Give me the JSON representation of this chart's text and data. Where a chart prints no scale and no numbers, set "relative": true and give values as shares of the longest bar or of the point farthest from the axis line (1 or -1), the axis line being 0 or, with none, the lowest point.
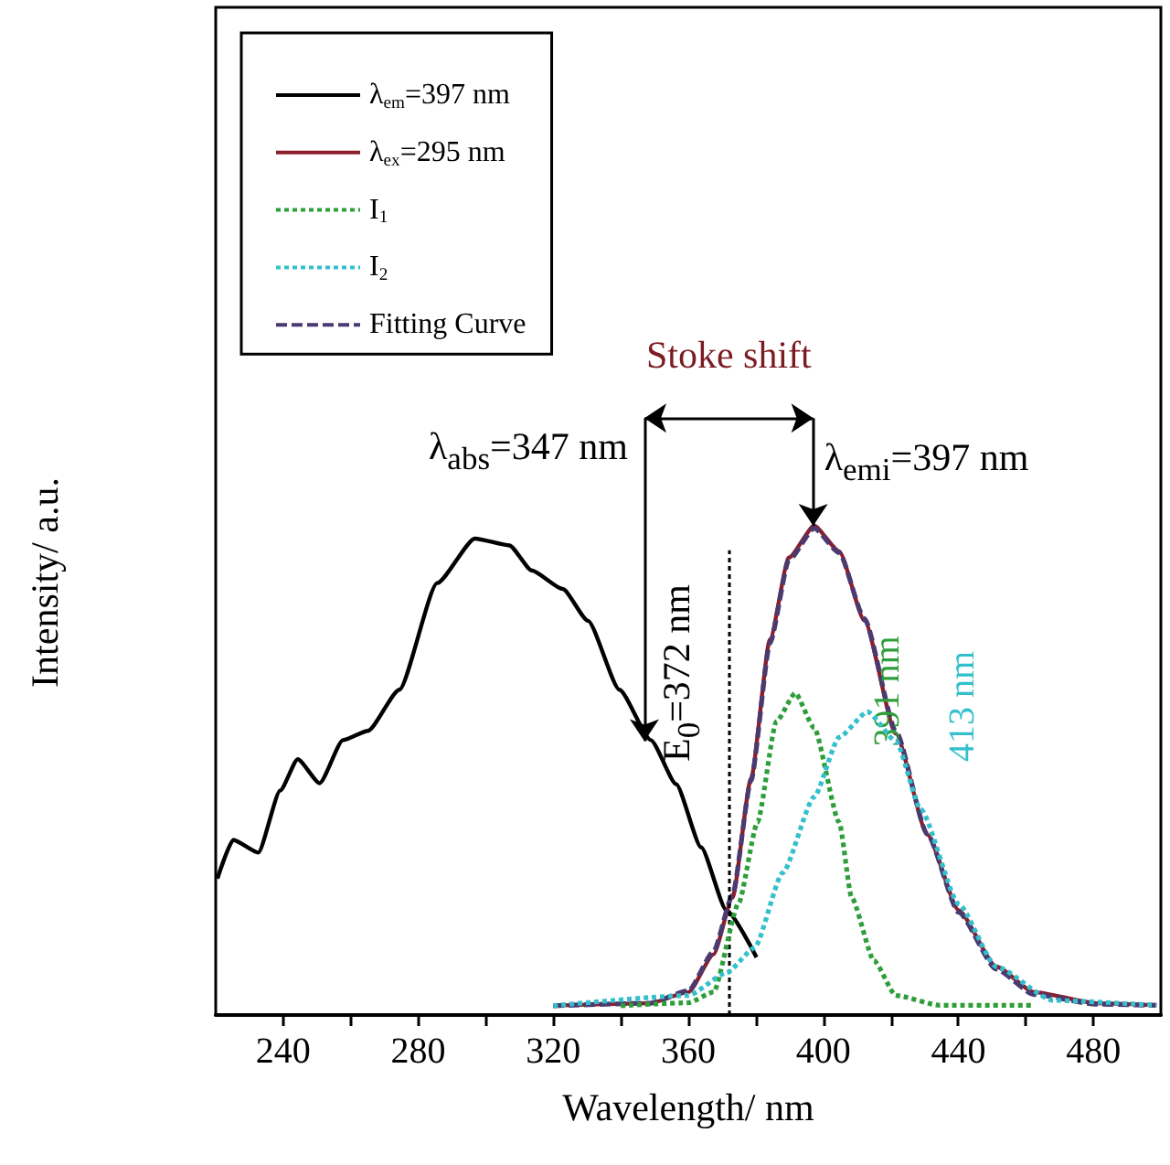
{
  "chart_data": {
    "type": "line",
    "relative": true,
    "xlabel": "Wavelength/ nm",
    "ylabel": "Intensity/ a.u.",
    "xlim": [
      220,
      500
    ],
    "xticks": [
      240,
      {
        "value": 260,
        "label": null
      },
      280,
      {
        "value": 300,
        "label": null
      },
      320,
      {
        "value": 340,
        "label": null
      },
      360,
      {
        "value": 380,
        "label": null
      },
      400,
      {
        "value": 420,
        "label": null
      },
      440,
      {
        "value": 460,
        "label": null
      },
      480
    ],
    "tick_labels": "x",
    "grid": false,
    "legend": "top left",
    "marker": "none",
    "series": [
      {
        "name": "λ$_{em}$=397 nm",
        "color": "#000000",
        "line_style": "solid",
        "x": [
          220.5,
          225.2,
          232.6,
          239.1,
          244.3,
          250.8,
          257.7,
          265.1,
          274.4,
          285.6,
          296.8,
          307,
          313.6,
          322.8,
          330.3,
          339.6,
          348.9,
          356.4,
          363.8,
          371.3,
          380.2
        ],
        "values": [
          0.279,
          0.358,
          0.332,
          0.459,
          0.523,
          0.474,
          0.562,
          0.581,
          0.665,
          0.883,
          0.974,
          0.96,
          0.909,
          0.871,
          0.806,
          0.665,
          0.562,
          0.472,
          0.343,
          0.214,
          0.118
        ]
      },
      {
        "name": "λ$_{ex}$=295 nm",
        "color": "#8b1e2a",
        "line_style": "solid",
        "x": [
          320,
          348.5,
          360.1,
          367.5,
          373.1,
          378.6,
          384.2,
          389.8,
          397.3,
          404.7,
          412.2,
          421.5,
          430.8,
          440.1,
          451.2,
          462.4,
          481,
          498.7
        ],
        "values": [
          0.019,
          0.024,
          0.047,
          0.124,
          0.24,
          0.484,
          0.768,
          0.935,
          1.0,
          0.948,
          0.806,
          0.575,
          0.369,
          0.214,
          0.099,
          0.047,
          0.024,
          0.02
        ]
      },
      {
        "name": "I$_{1}$",
        "color": "#2e9e3a",
        "line_style": "dotted",
        "x": [
          340,
          360,
          367.5,
          374.9,
          380.5,
          386.1,
          391.7,
          397.3,
          404.7,
          408.4,
          415,
          421.5,
          434.4,
          462
        ],
        "values": [
          0.019,
          0.025,
          0.047,
          0.228,
          0.394,
          0.6,
          0.658,
          0.587,
          0.394,
          0.24,
          0.111,
          0.04,
          0.02,
          0.02
        ]
      },
      {
        "name": "I$_{2}$",
        "color": "#33c0cc",
        "line_style": "dotted",
        "x": [
          320,
          360,
          371.3,
          379.6,
          388,
          397.3,
          404.7,
          413.1,
          421.5,
          428.9,
          440.1,
          451.2,
          468,
          498.7
        ],
        "values": [
          0.019,
          0.04,
          0.086,
          0.137,
          0.291,
          0.446,
          0.568,
          0.62,
          0.56,
          0.42,
          0.227,
          0.099,
          0.03,
          0.02
        ]
      },
      {
        "name": "Fitting Curve",
        "color": "#4a3a70",
        "line_style": "dashed",
        "x": [
          320,
          348.5,
          360.1,
          367.5,
          373.1,
          378.6,
          384.2,
          389.8,
          397.3,
          404.7,
          412.2,
          421.5,
          430.8,
          440.1,
          451.2,
          462.4,
          481,
          498.7
        ],
        "values": [
          0.019,
          0.024,
          0.05,
          0.13,
          0.245,
          0.48,
          0.76,
          0.93,
          0.995,
          0.945,
          0.81,
          0.58,
          0.37,
          0.21,
          0.094,
          0.042,
          0.022,
          0.02
        ]
      }
    ],
    "ref_lines": [
      {
        "axis": "x",
        "value": 372,
        "label": "E$_{0}$=372 nm",
        "line_style": "dotted",
        "color": "#000000"
      }
    ],
    "annotations": [
      {
        "text": "λ$_{abs}$=347 nm",
        "x": 347,
        "y": 0.56
      },
      {
        "text": "λ$_{emi}$=397 nm",
        "x": 397,
        "y": 1.0
      },
      "Stoke shift",
      {
        "text": "391 nm",
        "x": 391,
        "y": 0.658
      },
      {
        "text": "413 nm",
        "x": 413,
        "y": 0.62
      }
    ]
  }
}
